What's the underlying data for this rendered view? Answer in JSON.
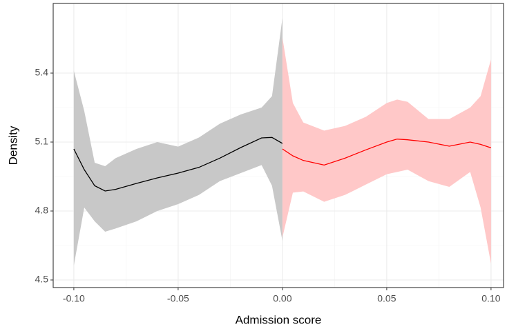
{
  "chart_data": {
    "type": "line",
    "x_label": "Admission score",
    "y_label": "Density",
    "xlim": [
      -0.1099,
      0.106
    ],
    "ylim": [
      4.467,
      5.703
    ],
    "xticks": [
      {
        "value": -0.1,
        "label": "-0.10"
      },
      {
        "value": -0.05,
        "label": "-0.05"
      },
      {
        "value": 0,
        "label": "0.00"
      },
      {
        "value": 0.05,
        "label": "0.05"
      },
      {
        "value": 0.1,
        "label": "0.10"
      }
    ],
    "yticks": [
      4.5,
      4.8,
      5.1,
      5.4
    ],
    "grid": true,
    "series": [
      {
        "color": "#000000",
        "band_color": "#c8c8c8",
        "x": [
          -0.1,
          -0.095,
          -0.09,
          -0.085,
          -0.08,
          -0.07,
          -0.06,
          -0.05,
          -0.04,
          -0.03,
          -0.02,
          -0.01,
          -0.005,
          0
        ],
        "values": [
          5.07,
          4.98,
          4.91,
          4.887,
          4.894,
          4.92,
          4.944,
          4.965,
          4.99,
          5.03,
          5.076,
          5.118,
          5.12,
          5.094
        ],
        "lower": [
          4.563,
          4.815,
          4.755,
          4.71,
          4.724,
          4.755,
          4.8,
          4.83,
          4.87,
          4.93,
          4.965,
          5.0,
          4.91,
          4.67
        ],
        "upper": [
          5.41,
          5.235,
          5.01,
          4.995,
          5.03,
          5.07,
          5.1,
          5.08,
          5.12,
          5.18,
          5.22,
          5.25,
          5.3,
          5.64
        ]
      },
      {
        "color": "#ff0000",
        "band_color": "#ffc8c8",
        "x": [
          0,
          0.005,
          0.01,
          0.02,
          0.03,
          0.04,
          0.05,
          0.055,
          0.06,
          0.07,
          0.08,
          0.09,
          0.095,
          0.1
        ],
        "values": [
          5.07,
          5.04,
          5.02,
          5.0,
          5.03,
          5.066,
          5.1,
          5.113,
          5.11,
          5.1,
          5.082,
          5.1,
          5.09,
          5.075
        ],
        "lower": [
          4.685,
          4.88,
          4.885,
          4.84,
          4.87,
          4.915,
          4.96,
          4.97,
          4.98,
          4.93,
          4.905,
          4.97,
          4.815,
          4.57
        ],
        "upper": [
          5.555,
          5.27,
          5.185,
          5.15,
          5.17,
          5.21,
          5.27,
          5.285,
          5.275,
          5.2,
          5.2,
          5.25,
          5.3,
          5.46
        ]
      }
    ]
  }
}
